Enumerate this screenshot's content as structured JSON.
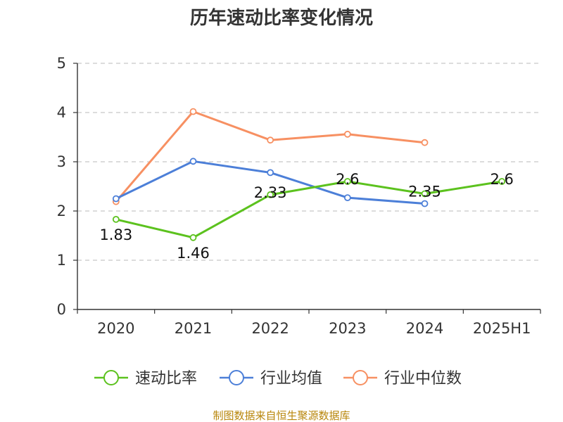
{
  "chart_data": {
    "type": "line",
    "title": "历年速动比率变化情况",
    "categories": [
      "2020",
      "2021",
      "2022",
      "2023",
      "2024",
      "2025H1"
    ],
    "y_ticks": [
      "0",
      "1",
      "2",
      "3",
      "4",
      "5"
    ],
    "ylim": [
      0,
      5
    ],
    "grid": true,
    "legend_position": "bottom",
    "series": [
      {
        "name": "速动比率",
        "color": "#5cc21e",
        "values": [
          1.83,
          1.46,
          2.33,
          2.6,
          2.35,
          2.6
        ],
        "labels": [
          "1.83",
          "1.46",
          "2.33",
          "2.6",
          "2.35",
          "2.6"
        ]
      },
      {
        "name": "行业均值",
        "color": "#4c7fd8",
        "values": [
          2.25,
          3.01,
          2.78,
          2.27,
          2.15,
          null
        ]
      },
      {
        "name": "行业中位数",
        "color": "#f79062",
        "values": [
          2.19,
          4.02,
          3.44,
          3.56,
          3.39,
          null
        ]
      }
    ],
    "source": "制图数据来自恒生聚源数据库"
  }
}
